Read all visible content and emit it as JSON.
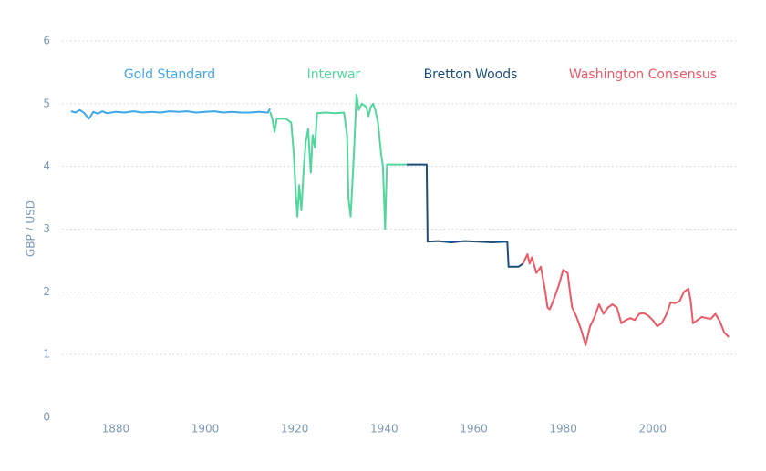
{
  "chart_data": {
    "type": "line",
    "y_label": "GBP / USD",
    "xlim": [
      1868,
      2019
    ],
    "ylim": [
      0,
      6
    ],
    "xticks": [
      1880,
      1900,
      1920,
      1940,
      1960,
      1980,
      2000
    ],
    "yticks": [
      0,
      1,
      2,
      3,
      4,
      5,
      6
    ],
    "grid": true,
    "series": [
      {
        "name": "Gold Standard",
        "color": "#3ea8e8",
        "x": [
          1870,
          1871,
          1872,
          1873,
          1874,
          1875,
          1876,
          1877,
          1878,
          1880,
          1882,
          1884,
          1886,
          1888,
          1890,
          1892,
          1894,
          1896,
          1898,
          1900,
          1902,
          1904,
          1906,
          1908,
          1910,
          1912,
          1914,
          1914.5
        ],
        "values": [
          4.88,
          4.86,
          4.9,
          4.85,
          4.76,
          4.87,
          4.84,
          4.88,
          4.85,
          4.87,
          4.86,
          4.88,
          4.86,
          4.87,
          4.86,
          4.88,
          4.87,
          4.88,
          4.86,
          4.87,
          4.88,
          4.86,
          4.87,
          4.86,
          4.86,
          4.87,
          4.86,
          4.92
        ]
      },
      {
        "name": "Interwar",
        "color": "#52d69b",
        "x": [
          1914.5,
          1915,
          1915.5,
          1916,
          1918,
          1919.2,
          1919.8,
          1920.2,
          1920.6,
          1921,
          1921.5,
          1922,
          1922.5,
          1923,
          1923.6,
          1924,
          1924.5,
          1925,
          1927,
          1929,
          1931,
          1931.7,
          1932,
          1932.5,
          1933,
          1933.3,
          1933.8,
          1934.3,
          1935,
          1936,
          1936.5,
          1937,
          1937.5,
          1938,
          1938.6,
          1939.3,
          1939.7,
          1940.2,
          1940.6,
          1942,
          1945
        ],
        "values": [
          4.87,
          4.76,
          4.55,
          4.76,
          4.76,
          4.7,
          4.2,
          3.6,
          3.2,
          3.7,
          3.3,
          3.95,
          4.4,
          4.6,
          3.9,
          4.5,
          4.3,
          4.85,
          4.86,
          4.85,
          4.86,
          4.5,
          3.5,
          3.2,
          3.9,
          4.3,
          5.15,
          4.9,
          5.0,
          4.95,
          4.8,
          4.95,
          5.0,
          4.9,
          4.7,
          4.2,
          4.0,
          3.0,
          4.03,
          4.03,
          4.03
        ]
      },
      {
        "name": "Bretton Woods",
        "color": "#1b4f7a",
        "x": [
          1945,
          1949.5,
          1949.7,
          1952,
          1955,
          1958,
          1961,
          1964,
          1967.5,
          1967.8,
          1970,
          1971
        ],
        "values": [
          4.03,
          4.03,
          2.8,
          2.81,
          2.79,
          2.81,
          2.8,
          2.79,
          2.8,
          2.4,
          2.4,
          2.45
        ]
      },
      {
        "name": "Washington Consensus",
        "color": "#ec5866",
        "x": [
          1971,
          1972,
          1972.5,
          1973,
          1974,
          1975,
          1976,
          1976.5,
          1977,
          1978,
          1979,
          1980,
          1981,
          1981.5,
          1982,
          1983,
          1984,
          1985,
          1986,
          1987,
          1988,
          1989,
          1990,
          1991,
          1992,
          1993,
          1994,
          1995,
          1996,
          1997,
          1998,
          1999,
          2000,
          2001,
          2002,
          2003,
          2004,
          2005,
          2006,
          2007,
          2008,
          2008.5,
          2009,
          2010,
          2011,
          2012,
          2013,
          2014,
          2015,
          2016,
          2017
        ],
        "values": [
          2.45,
          2.6,
          2.45,
          2.55,
          2.3,
          2.4,
          2.0,
          1.75,
          1.72,
          1.9,
          2.1,
          2.35,
          2.3,
          2.0,
          1.75,
          1.6,
          1.4,
          1.15,
          1.45,
          1.6,
          1.8,
          1.65,
          1.75,
          1.8,
          1.75,
          1.5,
          1.55,
          1.58,
          1.55,
          1.65,
          1.66,
          1.62,
          1.55,
          1.45,
          1.5,
          1.63,
          1.83,
          1.82,
          1.85,
          2.0,
          2.05,
          1.85,
          1.5,
          1.55,
          1.6,
          1.58,
          1.57,
          1.65,
          1.53,
          1.35,
          1.28
        ]
      }
    ]
  }
}
